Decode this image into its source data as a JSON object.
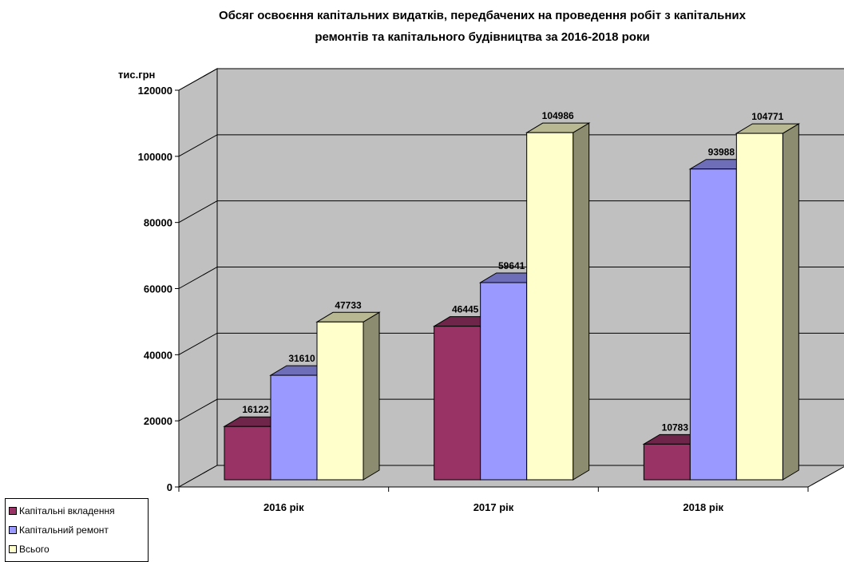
{
  "chart_data": {
    "type": "bar",
    "title_lines": [
      "Обсяг освоєння капітальних видатків, передбачених на проведення робіт з капітальних",
      "ремонтів та капітального будівництва за  2016-2018 роки"
    ],
    "ylabel": "тис.грн",
    "xlabel": "",
    "categories": [
      "2016 рік",
      "2017 рік",
      "2018 рік"
    ],
    "series": [
      {
        "name": "Капітальні вкладення",
        "values": [
          16122,
          46445,
          10783
        ],
        "color": "#993366"
      },
      {
        "name": "Капітальний ремонт",
        "values": [
          31610,
          59641,
          93988
        ],
        "color": "#9999ff"
      },
      {
        "name": "Всього",
        "values": [
          47733,
          104986,
          104771
        ],
        "color": "#ffffcc"
      }
    ],
    "y_ticks": [
      "0",
      "20000",
      "40000",
      "60000",
      "80000",
      "100000",
      "120000"
    ],
    "ylim": [
      0,
      120000
    ],
    "grid": true,
    "legend_position": "bottom-left",
    "style": "3d-clustered-column"
  }
}
